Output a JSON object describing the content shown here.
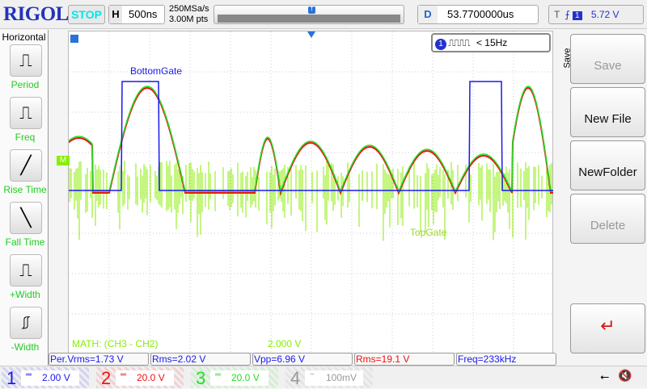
{
  "header": {
    "logo": "RIGOL",
    "run_state": "STOP",
    "timebase_label": "H",
    "timebase": "500ns",
    "sample_rate": "250MSa/s",
    "memory_depth": "3.00M pts",
    "delay_label": "D",
    "delay": "53.7700000us",
    "trigger_label": "T",
    "trigger_edge": "rising",
    "trigger_source": "1",
    "trigger_level": "5.72 V"
  },
  "left_menu": {
    "title": "Horizontal",
    "items": [
      {
        "label": "Period"
      },
      {
        "label": "Freq"
      },
      {
        "label": "Rise Time"
      },
      {
        "label": "Fall Time"
      },
      {
        "label": "+Width"
      },
      {
        "label": "-Width"
      }
    ]
  },
  "screen": {
    "trigger_status": {
      "source": "1",
      "text": "< 15Hz"
    },
    "labels": {
      "ch1": "BottomGate",
      "math": "TopGate"
    },
    "math_info": "MATH:  (CH3 - CH2)",
    "math_scale": "2.000 V",
    "math_marker": "M"
  },
  "measurements": [
    {
      "text": "Per.Vrms=1.73 V",
      "color": "#1a1aee"
    },
    {
      "text": "Rms=2.02 V",
      "color": "#1a1aee"
    },
    {
      "text": "Vpp=6.96 V",
      "color": "#1a1aee"
    },
    {
      "text": "Rms=19.1 V",
      "color": "#ee1111"
    },
    {
      "text": "Freq=233kHz",
      "color": "#1a1aee"
    }
  ],
  "channels": [
    {
      "num": "1",
      "coupling": "DC",
      "scale": "2.00 V",
      "color": "#1a1aee"
    },
    {
      "num": "2",
      "coupling": "DC",
      "scale": "20.0 V",
      "color": "#ee1111"
    },
    {
      "num": "3",
      "coupling": "DC",
      "scale": "20.0 V",
      "color": "#22dd22"
    },
    {
      "num": "4",
      "coupling": "AC",
      "scale": "100mV",
      "color": "#999999"
    }
  ],
  "right_menu": {
    "title": "Save",
    "items": [
      {
        "label": "Save",
        "enabled": false
      },
      {
        "label": "New File",
        "enabled": true
      },
      {
        "label": "NewFolder",
        "enabled": true
      },
      {
        "label": "Delete",
        "enabled": false
      }
    ]
  },
  "colors": {
    "ch1": "#1a1aee",
    "ch2": "#ee1111",
    "ch3": "#22dd22",
    "math": "#88ee00"
  }
}
